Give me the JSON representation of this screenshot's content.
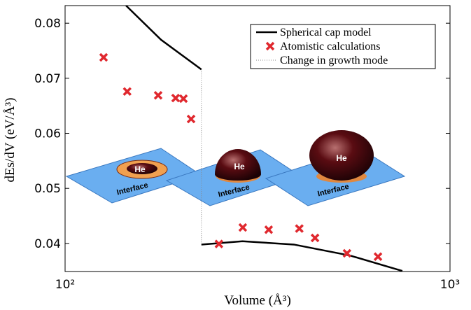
{
  "chart_data": {
    "type": "scatter",
    "xlabel": "Volume (Å³)",
    "ylabel": "dEs/dV (eV/Å³)",
    "xscale": "log",
    "xlim": [
      100,
      1000
    ],
    "ylim": [
      0.0349,
      0.0832
    ],
    "xticks": [
      {
        "value": 100,
        "label": "10²"
      },
      {
        "value": 1000,
        "label": "10³"
      }
    ],
    "yticks": [
      0.04,
      0.05,
      0.06,
      0.07,
      0.08
    ],
    "legend": "upper right",
    "series": [
      {
        "name": "Spherical cap model",
        "type": "line",
        "color": "#000000",
        "x": [
          144,
          177.5,
          226,
          226,
          226,
          289,
          393,
          550,
          752
        ],
        "values": [
          0.0832,
          0.077,
          0.0716,
          null,
          0.0398,
          0.0404,
          0.0398,
          0.0378,
          0.035
        ]
      },
      {
        "name": "Atomistic calculations",
        "type": "scatter",
        "color": "#e0282e",
        "x": [
          125.9,
          145,
          174.5,
          193.7,
          203,
          212.5,
          251,
          289.5,
          338,
          406,
          446,
          540,
          650
        ],
        "values": [
          0.0738,
          0.0676,
          0.0669,
          0.0664,
          0.0663,
          0.0626,
          0.0399,
          0.0429,
          0.0425,
          0.0427,
          0.041,
          0.0382,
          0.0376
        ]
      },
      {
        "name": "Change in growth mode",
        "type": "dotted",
        "color": "#888888",
        "x": [
          226,
          226
        ],
        "values": [
          0.0716,
          0.0398
        ]
      }
    ],
    "illustrations": [
      {
        "particle": "He",
        "substrate": "Interface"
      },
      {
        "particle": "He",
        "substrate": "Interface"
      },
      {
        "particle": "He",
        "substrate": "Interface"
      }
    ]
  }
}
